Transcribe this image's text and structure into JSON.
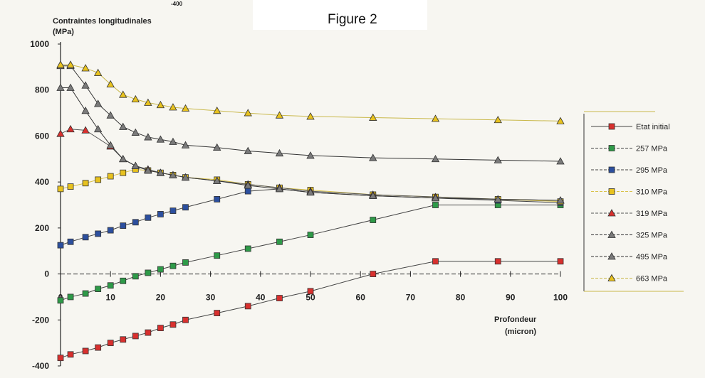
{
  "figure_title": "Figure 2",
  "crop_label": "-400",
  "chart_data": {
    "type": "line",
    "ylabel_line1": "Contraintes longitudinales",
    "ylabel_line2": "(MPa)",
    "xlabel_line1": "Profondeur",
    "xlabel_line2": "(micron)",
    "xlim": [
      0,
      100
    ],
    "ylim": [
      -400,
      1000
    ],
    "x_ticks": [
      "0",
      "10",
      "20",
      "30",
      "40",
      "50",
      "60",
      "70",
      "80",
      "90",
      "100"
    ],
    "y_ticks": [
      "1000",
      "800",
      "600",
      "400",
      "200",
      "0",
      "-200",
      "-400"
    ],
    "legend_position": "right",
    "grid": false,
    "series": [
      {
        "name": "Etat initial",
        "marker": "square",
        "color": "#d8302e",
        "line": "#444444",
        "x": [
          0,
          2,
          5,
          7.5,
          10,
          12.5,
          15,
          17.5,
          20,
          22.5,
          25,
          31.3,
          37.5,
          43.8,
          50,
          62.5,
          75,
          87.5,
          100
        ],
        "y": [
          -365,
          -350,
          -335,
          -320,
          -300,
          -285,
          -270,
          -255,
          -235,
          -220,
          -200,
          -170,
          -140,
          -105,
          -75,
          0,
          55,
          55,
          55
        ]
      },
      {
        "name": "257 MPa",
        "marker": "square",
        "color": "#2e9a48",
        "line": "#444444",
        "x": [
          0,
          2,
          5,
          7.5,
          10,
          12.5,
          15,
          17.5,
          20,
          22.5,
          25,
          31.3,
          37.5,
          43.8,
          50,
          62.5,
          75,
          87.5,
          100
        ],
        "y": [
          -115,
          -100,
          -85,
          -65,
          -50,
          -30,
          -10,
          5,
          20,
          35,
          50,
          80,
          110,
          140,
          170,
          235,
          300,
          300,
          300
        ]
      },
      {
        "name": "295 MPa",
        "marker": "square",
        "color": "#2c4f9e",
        "line": "#444444",
        "x": [
          0,
          2,
          5,
          7.5,
          10,
          12.5,
          15,
          17.5,
          20,
          22.5,
          25,
          31.3,
          37.5,
          43.8,
          50,
          62.5,
          75,
          87.5,
          100
        ],
        "y": [
          125,
          140,
          160,
          175,
          190,
          210,
          225,
          245,
          260,
          275,
          290,
          325,
          360,
          370,
          355,
          340,
          330,
          320,
          310
        ]
      },
      {
        "name": "310 MPa",
        "marker": "square",
        "color": "#e8c21e",
        "line": "#d9c24a",
        "x": [
          0,
          2,
          5,
          7.5,
          10,
          12.5,
          15,
          17.5,
          20,
          22.5,
          25,
          31.3,
          37.5,
          43.8,
          50,
          62.5,
          75,
          87.5,
          100
        ],
        "y": [
          370,
          380,
          395,
          410,
          425,
          440,
          455,
          450,
          440,
          430,
          420,
          410,
          390,
          375,
          365,
          345,
          335,
          325,
          315
        ]
      },
      {
        "name": "319 MPa",
        "marker": "triangle",
        "color": "#d8302e",
        "line": "#555555",
        "x": [
          0,
          2,
          5,
          10,
          12.5,
          15,
          17.5,
          20,
          22.5,
          25,
          31.3,
          37.5,
          43.8,
          50,
          62.5,
          75,
          87.5,
          100
        ],
        "y": [
          610,
          630,
          625,
          555,
          500,
          470,
          455,
          440,
          430,
          420,
          405,
          390,
          375,
          360,
          345,
          335,
          325,
          320
        ]
      },
      {
        "name": "325 MPa",
        "marker": "triangle",
        "color": "#7a7a7a",
        "line": "#333333",
        "x": [
          0,
          2,
          5,
          7.5,
          10,
          12.5,
          15,
          17.5,
          20,
          22.5,
          25,
          31.3,
          37.5,
          43.8,
          50,
          62.5,
          75,
          87.5,
          100
        ],
        "y": [
          810,
          810,
          710,
          630,
          560,
          500,
          470,
          450,
          440,
          430,
          420,
          405,
          385,
          370,
          355,
          340,
          330,
          325,
          320
        ]
      },
      {
        "name": "495 MPa",
        "marker": "triangle",
        "color": "#7a7a7a",
        "line": "#333333",
        "x": [
          0,
          2,
          5,
          7.5,
          10,
          12.5,
          15,
          17.5,
          20,
          22.5,
          25,
          31.3,
          37.5,
          43.8,
          50,
          62.5,
          75,
          87.5,
          100
        ],
        "y": [
          905,
          905,
          820,
          740,
          690,
          640,
          615,
          595,
          585,
          575,
          560,
          550,
          535,
          525,
          515,
          505,
          500,
          495,
          490
        ]
      },
      {
        "name": "663 MPa",
        "marker": "triangle",
        "color": "#e8c21e",
        "line": "#c9b84a",
        "x": [
          0,
          2,
          5,
          7.5,
          10,
          12.5,
          15,
          17.5,
          20,
          22.5,
          25,
          31.3,
          37.5,
          43.8,
          50,
          62.5,
          75,
          87.5,
          100
        ],
        "y": [
          910,
          910,
          895,
          875,
          825,
          780,
          760,
          745,
          735,
          725,
          720,
          710,
          700,
          690,
          685,
          680,
          675,
          670,
          665
        ]
      }
    ]
  }
}
